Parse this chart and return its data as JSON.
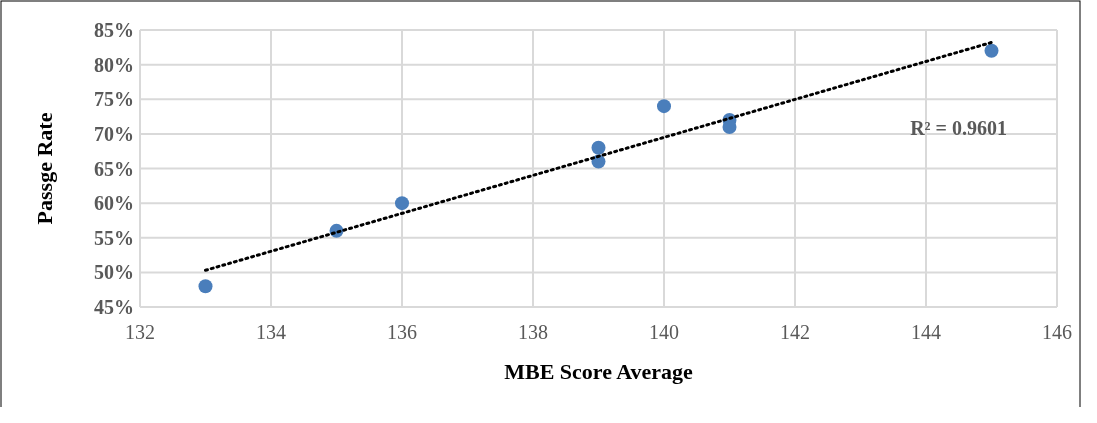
{
  "chart_data": {
    "type": "scatter",
    "xlabel": "MBE Score Average",
    "ylabel": "Passge Rate",
    "xlim": [
      132,
      146
    ],
    "xticks": [
      132,
      134,
      136,
      138,
      140,
      142,
      144,
      146
    ],
    "ylim": [
      45,
      85
    ],
    "yticks": [
      {
        "value": 45,
        "label": "45%"
      },
      {
        "value": 50,
        "label": "50%"
      },
      {
        "value": 55,
        "label": "55%"
      },
      {
        "value": 60,
        "label": "60%"
      },
      {
        "value": 65,
        "label": "65%"
      },
      {
        "value": 70,
        "label": "70%"
      },
      {
        "value": 75,
        "label": "75%"
      },
      {
        "value": 80,
        "label": "80%"
      },
      {
        "value": 85,
        "label": "85%"
      }
    ],
    "grid": true,
    "series": [
      {
        "color": "#4a7ebb",
        "marker": "circle",
        "x": [
          133,
          135,
          136,
          139,
          139,
          140,
          141,
          141,
          145
        ],
        "values": [
          48,
          56,
          60,
          68,
          66,
          74,
          72,
          71,
          82
        ]
      },
      {
        "type": "line",
        "color": "#000000",
        "marker": "none",
        "line_style": "dotted",
        "x": [
          133,
          145
        ],
        "values": [
          50.3,
          83.2
        ]
      }
    ],
    "annotations": [
      "R² = 0.9601"
    ]
  }
}
